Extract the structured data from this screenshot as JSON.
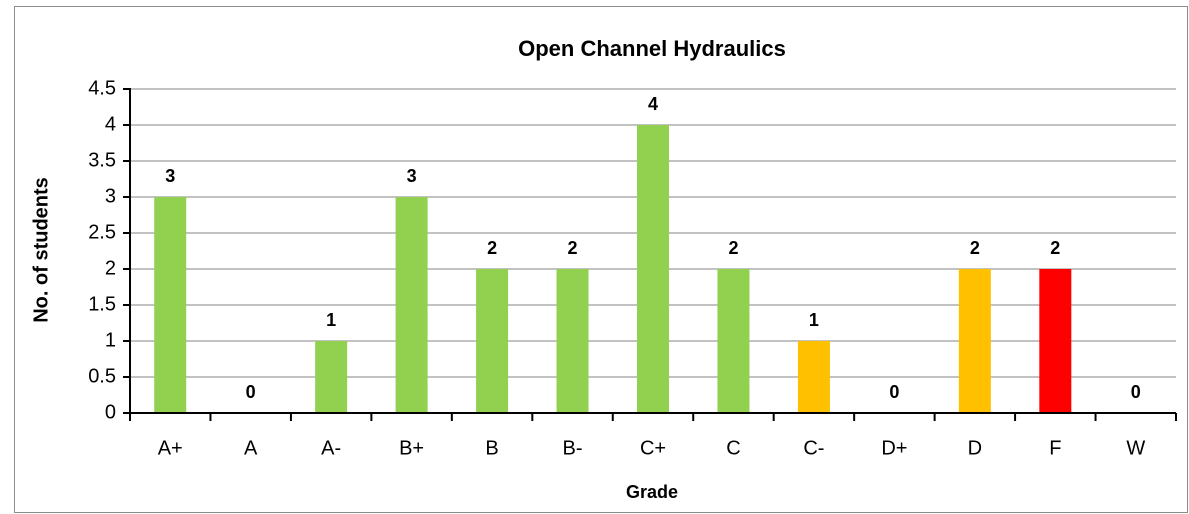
{
  "chart_data": {
    "type": "bar",
    "title": "Open Channel Hydraulics",
    "x_label": "Grade",
    "y_label": "No. of students",
    "categories": [
      "A+",
      "A",
      "A-",
      "B+",
      "B",
      "B-",
      "C+",
      "C",
      "C-",
      "D+",
      "D",
      "F",
      "W"
    ],
    "values": [
      3,
      0,
      1,
      3,
      2,
      2,
      4,
      2,
      1,
      0,
      2,
      2,
      0
    ],
    "colors": [
      "#92d050",
      "#92d050",
      "#92d050",
      "#92d050",
      "#92d050",
      "#92d050",
      "#92d050",
      "#92d050",
      "#ffc000",
      "#ffc000",
      "#ffc000",
      "#ff0000",
      "#92d050"
    ],
    "ylim": [
      0,
      4.5
    ],
    "yticks": [
      0,
      0.5,
      1,
      1.5,
      2,
      2.5,
      3,
      3.5,
      4,
      4.5
    ],
    "grid": true
  }
}
